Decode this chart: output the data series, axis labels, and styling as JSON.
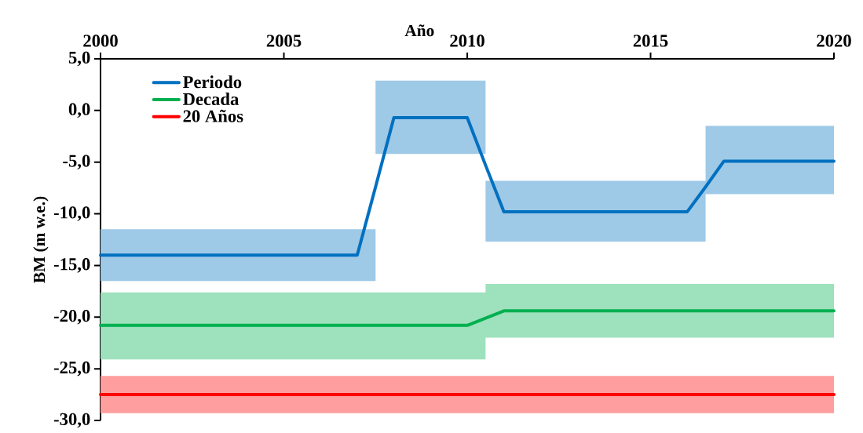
{
  "chart_data": {
    "type": "line",
    "xlabel": "Año",
    "ylabel": "BM (m w.e.)",
    "xlim": [
      2000,
      2020
    ],
    "xticks": [
      2000,
      2005,
      2010,
      2015,
      2020
    ],
    "ylim": [
      -30,
      5
    ],
    "yticks": [
      {
        "value": 5,
        "label": "5,0"
      },
      {
        "value": 0,
        "label": "0,0"
      },
      {
        "value": -5,
        "label": "-5,0"
      },
      {
        "value": -10,
        "label": "-10,0"
      },
      {
        "value": -15,
        "label": "-15,0"
      },
      {
        "value": -20,
        "label": "-20,0"
      },
      {
        "value": -25,
        "label": "-25,0"
      },
      {
        "value": -30,
        "label": "-30,0"
      }
    ],
    "series": [
      {
        "name": "Periodo",
        "color": "#0070c0",
        "x": [
          2000,
          2007,
          2007.5,
          2007.5,
          2008,
          2010,
          2010.5,
          2010.5,
          2011,
          2016,
          2016.5,
          2016.5,
          2017,
          2020
        ],
        "values": [
          -14.0,
          -14.0,
          -7.4,
          -7.4,
          -0.7,
          -0.7,
          -5.3,
          -5.3,
          -9.8,
          -9.8,
          -7.4,
          -7.4,
          -4.9,
          -4.9
        ],
        "lower": [
          -16.5,
          -16.5,
          -16.5,
          -4.2,
          -4.2,
          -4.2,
          -4.2,
          -12.7,
          -12.7,
          -12.7,
          -12.7,
          -8.1,
          -8.1,
          -8.1
        ],
        "upper": [
          -11.5,
          -11.5,
          -11.5,
          2.9,
          2.9,
          2.9,
          2.9,
          -6.8,
          -6.8,
          -6.8,
          -6.8,
          -1.5,
          -1.5,
          -1.5
        ]
      },
      {
        "name": "Decada",
        "color": "#00b050",
        "x": [
          2000,
          2010,
          2010.5,
          2010.5,
          2011,
          2020
        ],
        "values": [
          -20.8,
          -20.8,
          -20.1,
          -20.1,
          -19.4,
          -19.4
        ],
        "lower": [
          -24.1,
          -24.1,
          -24.1,
          -22.0,
          -22.0,
          -22.0
        ],
        "upper": [
          -17.6,
          -17.6,
          -17.6,
          -16.8,
          -16.8,
          -16.8
        ]
      },
      {
        "name": "20 Años",
        "color": "#ff0000",
        "x": [
          2000,
          2020
        ],
        "values": [
          -27.5,
          -27.5
        ],
        "lower": [
          -29.3,
          -29.3
        ],
        "upper": [
          -25.7,
          -25.7
        ]
      }
    ],
    "legend": "top left",
    "grid": false,
    "marker": "none",
    "line_style": "solid"
  }
}
